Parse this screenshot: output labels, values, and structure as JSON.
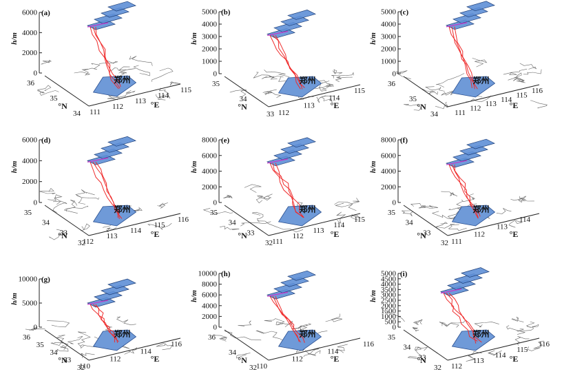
{
  "colors": {
    "region": "#6f9ad8",
    "region_edge": "#2a4f8f",
    "track": "#ef2b2b",
    "level": "#5e8fd6",
    "axis": "#222222",
    "map": "#666666"
  },
  "chart_data": [
    {
      "panel": "(a)",
      "type": "3d-trajectory",
      "zlabel": "h/m",
      "zticks": [
        "0",
        "2000",
        "4000",
        "6000"
      ],
      "zmax": 6000,
      "yticks": [
        "36",
        "35",
        "34"
      ],
      "xticks": [
        "111",
        "112",
        "113",
        "114",
        "115"
      ],
      "ylabel": "°N",
      "xlabel": "°E",
      "city": "郑州",
      "levels": 4,
      "track_top": 4700
    },
    {
      "panel": "(b)",
      "type": "3d-trajectory",
      "zlabel": "h/m",
      "zticks": [
        "0",
        "1000",
        "2000",
        "3000",
        "4000",
        "5000"
      ],
      "zmax": 5000,
      "yticks": [
        "35",
        "34",
        "33"
      ],
      "xticks": [
        "112",
        "113",
        "114",
        "115"
      ],
      "ylabel": "°N",
      "xlabel": "°E",
      "city": "郑州",
      "levels": 4,
      "track_top": 3200
    },
    {
      "panel": "(c)",
      "type": "3d-trajectory",
      "zlabel": "h/m",
      "zticks": [
        "0",
        "1000",
        "2000",
        "3000",
        "4000",
        "5000"
      ],
      "zmax": 5000,
      "yticks": [
        "36",
        "35",
        "34"
      ],
      "xticks": [
        "111",
        "112",
        "113",
        "114",
        "115",
        "116"
      ],
      "ylabel": "°N",
      "xlabel": "°E",
      "city": "郑州",
      "levels": 4,
      "track_top": 3900
    },
    {
      "panel": "(d)",
      "type": "3d-trajectory",
      "zlabel": "h/m",
      "zticks": [
        "0",
        "2000",
        "4000",
        "6000"
      ],
      "zmax": 6000,
      "yticks": [
        "35",
        "34",
        "33",
        "32"
      ],
      "xticks": [
        "112",
        "113",
        "114",
        "115",
        "116"
      ],
      "ylabel": "°N",
      "xlabel": "°E",
      "city": "郑州",
      "levels": 4,
      "track_top": 4000
    },
    {
      "panel": "(e)",
      "type": "3d-trajectory",
      "zlabel": "h/m",
      "zticks": [
        "0",
        "2000",
        "4000",
        "6000",
        "8000"
      ],
      "zmax": 8000,
      "yticks": [
        "35",
        "34",
        "33",
        "32"
      ],
      "xticks": [
        "111",
        "112",
        "113",
        "114",
        "115"
      ],
      "ylabel": "°N",
      "xlabel": "°E",
      "city": "郑州",
      "levels": 4,
      "track_top": 5200
    },
    {
      "panel": "(f)",
      "type": "3d-trajectory",
      "zlabel": "h/m",
      "zticks": [
        "0",
        "2000",
        "4000",
        "6000",
        "8000"
      ],
      "zmax": 8000,
      "yticks": [
        "35",
        "34",
        "33",
        "32"
      ],
      "xticks": [
        "111",
        "112",
        "113",
        "114"
      ],
      "ylabel": "°N",
      "xlabel": "°E",
      "city": "郑州",
      "levels": 4,
      "track_top": 5000
    },
    {
      "panel": "(g)",
      "type": "3d-trajectory",
      "zlabel": "h/m",
      "zticks": [
        "0",
        "5000",
        "10000"
      ],
      "zmax": 10000,
      "yticks": [
        "36",
        "35",
        "34",
        "33",
        "32"
      ],
      "xticks": [
        "110",
        "112",
        "114",
        "116"
      ],
      "ylabel": "°N",
      "xlabel": "°E",
      "city": "郑州",
      "levels": 4,
      "track_top": 5000
    },
    {
      "panel": "(h)",
      "type": "3d-trajectory",
      "zlabel": "h/m",
      "zticks": [
        "0",
        "2000",
        "4000",
        "6000",
        "8000",
        "10000"
      ],
      "zmax": 10000,
      "yticks": [
        "36",
        "34",
        "32"
      ],
      "xticks": [
        "110",
        "112",
        "114",
        "116"
      ],
      "ylabel": "°N",
      "xlabel": "°E",
      "city": "郑州",
      "levels": 4,
      "track_top": 6000
    },
    {
      "panel": "(i)",
      "type": "3d-trajectory",
      "zlabel": "h/m",
      "zticks": [
        "0",
        "500",
        "1000",
        "1500",
        "2000",
        "2500",
        "3000",
        "3500",
        "4000",
        "4500",
        "5000"
      ],
      "zmax": 5000,
      "yticks": [
        "35",
        "34",
        "33",
        "32"
      ],
      "xticks": [
        "112",
        "113",
        "114",
        "115",
        "116"
      ],
      "ylabel": "°N",
      "xlabel": "°E",
      "city": "郑州",
      "levels": 4,
      "track_top": 3300
    }
  ]
}
